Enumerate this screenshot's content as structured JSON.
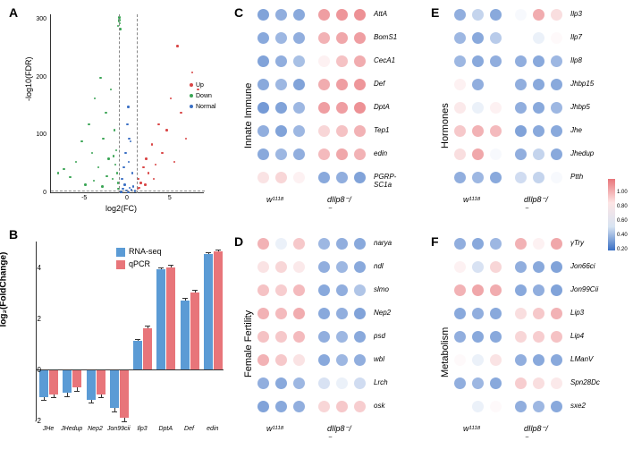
{
  "panelA": {
    "label": "A",
    "xlabel": "log2(FC)",
    "ylabel": "-log10(FDR)",
    "xlim": [
      -9,
      9
    ],
    "ylim": [
      0,
      310
    ],
    "xticks": [
      -5,
      0,
      5
    ],
    "yticks": [
      0,
      100,
      200,
      300
    ],
    "vline_x": [
      -1,
      1
    ],
    "hline_y": 5,
    "legend": [
      {
        "label": "Up",
        "color": "#d94545"
      },
      {
        "label": "Down",
        "color": "#3aa555"
      },
      {
        "label": "Normal",
        "color": "#3a6fc4"
      }
    ],
    "points": [
      {
        "x": -8.2,
        "y": 35,
        "c": "#3aa555"
      },
      {
        "x": -7.5,
        "y": 42,
        "c": "#3aa555"
      },
      {
        "x": -6.8,
        "y": 28,
        "c": "#3aa555"
      },
      {
        "x": -6.1,
        "y": 55,
        "c": "#3aa555"
      },
      {
        "x": -5.4,
        "y": 90,
        "c": "#3aa555"
      },
      {
        "x": -5.0,
        "y": 15,
        "c": "#3aa555"
      },
      {
        "x": -4.6,
        "y": 120,
        "c": "#3aa555"
      },
      {
        "x": -4.2,
        "y": 70,
        "c": "#3aa555"
      },
      {
        "x": -3.9,
        "y": 165,
        "c": "#3aa555"
      },
      {
        "x": -3.5,
        "y": 45,
        "c": "#3aa555"
      },
      {
        "x": -3.2,
        "y": 200,
        "c": "#3aa555"
      },
      {
        "x": -2.9,
        "y": 95,
        "c": "#3aa555"
      },
      {
        "x": -2.6,
        "y": 140,
        "c": "#3aa555"
      },
      {
        "x": -2.3,
        "y": 60,
        "c": "#3aa555"
      },
      {
        "x": -2.0,
        "y": 180,
        "c": "#3aa555"
      },
      {
        "x": -1.8,
        "y": 25,
        "c": "#3aa555"
      },
      {
        "x": -1.6,
        "y": 110,
        "c": "#3aa555"
      },
      {
        "x": -1.4,
        "y": 75,
        "c": "#3aa555"
      },
      {
        "x": -1.2,
        "y": 18,
        "c": "#3aa555"
      },
      {
        "x": -1.1,
        "y": 8,
        "c": "#3aa555"
      },
      {
        "x": -1.0,
        "y": 305,
        "c": "#3aa555"
      },
      {
        "x": -1.0,
        "y": 300,
        "c": "#3aa555"
      },
      {
        "x": -0.95,
        "y": 295,
        "c": "#3aa555"
      },
      {
        "x": -1.05,
        "y": 298,
        "c": "#3aa555"
      },
      {
        "x": -2.5,
        "y": 30,
        "c": "#3aa555"
      },
      {
        "x": -3.0,
        "y": 12,
        "c": "#3aa555"
      },
      {
        "x": -4.0,
        "y": 22,
        "c": "#3aa555"
      },
      {
        "x": -1.5,
        "y": 50,
        "c": "#3aa555"
      },
      {
        "x": -1.3,
        "y": 35,
        "c": "#3aa555"
      },
      {
        "x": -1.7,
        "y": 65,
        "c": "#3aa555"
      },
      {
        "x": -0.8,
        "y": 3,
        "c": "#3a6fc4"
      },
      {
        "x": -0.6,
        "y": 8,
        "c": "#3a6fc4"
      },
      {
        "x": -0.4,
        "y": 15,
        "c": "#3a6fc4"
      },
      {
        "x": -0.2,
        "y": 5,
        "c": "#3a6fc4"
      },
      {
        "x": 0,
        "y": 2,
        "c": "#3a6fc4"
      },
      {
        "x": 0.2,
        "y": 10,
        "c": "#3a6fc4"
      },
      {
        "x": 0.4,
        "y": 6,
        "c": "#3a6fc4"
      },
      {
        "x": 0.6,
        "y": 12,
        "c": "#3a6fc4"
      },
      {
        "x": 0.8,
        "y": 4,
        "c": "#3a6fc4"
      },
      {
        "x": -0.5,
        "y": 45,
        "c": "#3a6fc4"
      },
      {
        "x": -0.3,
        "y": 70,
        "c": "#3a6fc4"
      },
      {
        "x": 0.1,
        "y": 55,
        "c": "#3a6fc4"
      },
      {
        "x": 0.3,
        "y": 90,
        "c": "#3a6fc4"
      },
      {
        "x": 0.5,
        "y": 35,
        "c": "#3a6fc4"
      },
      {
        "x": -0.7,
        "y": 25,
        "c": "#3a6fc4"
      },
      {
        "x": -0.1,
        "y": 120,
        "c": "#3a6fc4"
      },
      {
        "x": 0.0,
        "y": 150,
        "c": "#3a6fc4"
      },
      {
        "x": 0.15,
        "y": 95,
        "c": "#3a6fc4"
      },
      {
        "x": 1.2,
        "y": 25,
        "c": "#d94545"
      },
      {
        "x": 1.5,
        "y": 18,
        "c": "#d94545"
      },
      {
        "x": 1.8,
        "y": 45,
        "c": "#d94545"
      },
      {
        "x": 2.1,
        "y": 60,
        "c": "#d94545"
      },
      {
        "x": 2.4,
        "y": 35,
        "c": "#d94545"
      },
      {
        "x": 2.8,
        "y": 85,
        "c": "#d94545"
      },
      {
        "x": 3.2,
        "y": 50,
        "c": "#d94545"
      },
      {
        "x": 3.6,
        "y": 120,
        "c": "#d94545"
      },
      {
        "x": 4.0,
        "y": 70,
        "c": "#d94545"
      },
      {
        "x": 4.5,
        "y": 110,
        "c": "#d94545"
      },
      {
        "x": 5.0,
        "y": 165,
        "c": "#d94545"
      },
      {
        "x": 5.4,
        "y": 55,
        "c": "#d94545"
      },
      {
        "x": 5.8,
        "y": 255,
        "c": "#d94545"
      },
      {
        "x": 6.2,
        "y": 140,
        "c": "#d94545"
      },
      {
        "x": 6.8,
        "y": 95,
        "c": "#d94545"
      },
      {
        "x": 7.5,
        "y": 210,
        "c": "#d94545"
      },
      {
        "x": 8.2,
        "y": 180,
        "c": "#d94545"
      },
      {
        "x": 1.3,
        "y": 10,
        "c": "#d94545"
      },
      {
        "x": 1.1,
        "y": 8,
        "c": "#d94545"
      },
      {
        "x": 2.0,
        "y": 15,
        "c": "#d94545"
      },
      {
        "x": 3.0,
        "y": 25,
        "c": "#d94545"
      },
      {
        "x": -1.2,
        "y": 290,
        "c": "#3aa555"
      },
      {
        "x": -0.9,
        "y": 285,
        "c": "#3aa555"
      }
    ]
  },
  "panelB": {
    "label": "B",
    "ylabel": "log₂(FoldChange)",
    "ylim": [
      -2,
      5
    ],
    "yticks": [
      -2,
      0,
      2,
      4
    ],
    "series": [
      {
        "label": "RNA-seq",
        "color": "#5b9bd5"
      },
      {
        "label": "qPCR",
        "color": "#e8757a"
      }
    ],
    "categories": [
      "JHe",
      "JHedup",
      "Nep2",
      "Jon99cii",
      "Ilp3",
      "DptA",
      "Def",
      "edin"
    ],
    "rnaseq": [
      -1.1,
      -0.9,
      -1.2,
      -1.5,
      1.1,
      3.9,
      2.7,
      4.5
    ],
    "qpcr": [
      -1.0,
      -0.7,
      -1.0,
      -1.9,
      1.6,
      4.0,
      3.0,
      4.6
    ],
    "err": [
      0.1,
      0.15,
      0.1,
      0.15,
      0.1,
      0.08,
      0.1,
      0.08
    ]
  },
  "heatmaps": {
    "colorRange": [
      "#3a6fc4",
      "#d8e4f2",
      "#fde5e5",
      "#e8757a"
    ],
    "scaleLabels": [
      "0.20",
      "0.40",
      "0.60",
      "0.80",
      "1.00"
    ],
    "xgroups": [
      "w¹¹¹⁸",
      "dIlp8⁻/⁻"
    ],
    "C": {
      "label": "C",
      "ylabel": "Innate Immune",
      "genes": [
        "AttA",
        "BomS1",
        "CecA1",
        "Def",
        "DptA",
        "Tep1",
        "edin",
        "PGRP-SC1a"
      ],
      "vals": [
        [
          0.18,
          0.22,
          0.2,
          0.85,
          0.88,
          0.9
        ],
        [
          0.2,
          0.25,
          0.22,
          0.78,
          0.82,
          0.85
        ],
        [
          0.18,
          0.22,
          0.28,
          0.55,
          0.72,
          0.8
        ],
        [
          0.2,
          0.25,
          0.18,
          0.8,
          0.85,
          0.88
        ],
        [
          0.15,
          0.18,
          0.25,
          0.85,
          0.85,
          0.9
        ],
        [
          0.22,
          0.18,
          0.25,
          0.65,
          0.72,
          0.78
        ],
        [
          0.2,
          0.25,
          0.22,
          0.75,
          0.82,
          0.78
        ],
        [
          0.6,
          0.65,
          0.55,
          0.2,
          0.22,
          0.18
        ]
      ]
    },
    "D": {
      "label": "D",
      "ylabel": "Female Fertility",
      "genes": [
        "narya",
        "ndl",
        "slmo",
        "Nep2",
        "psd",
        "wbl",
        "Lrch",
        "osk"
      ],
      "vals": [
        [
          0.78,
          0.45,
          0.7,
          0.25,
          0.22,
          0.2
        ],
        [
          0.6,
          0.65,
          0.58,
          0.22,
          0.25,
          0.2
        ],
        [
          0.72,
          0.68,
          0.75,
          0.2,
          0.22,
          0.3
        ],
        [
          0.78,
          0.75,
          0.8,
          0.2,
          0.22,
          0.18
        ],
        [
          0.72,
          0.7,
          0.75,
          0.22,
          0.25,
          0.2
        ],
        [
          0.78,
          0.7,
          0.6,
          0.2,
          0.25,
          0.22
        ],
        [
          0.22,
          0.2,
          0.25,
          0.4,
          0.45,
          0.38
        ],
        [
          0.18,
          0.2,
          0.22,
          0.65,
          0.7,
          0.68
        ]
      ]
    },
    "E": {
      "label": "E",
      "ylabel": "Hormones",
      "genes": [
        "Ilp3",
        "Ilp7",
        "Ilp8",
        "Jhbp15",
        "Jhbp5",
        "Jhe",
        "Jhedup",
        "Ptth"
      ],
      "vals": [
        [
          0.22,
          0.35,
          0.2,
          0.48,
          0.8,
          0.62
        ],
        [
          0.25,
          0.2,
          0.32,
          0.5,
          0.45,
          0.52
        ],
        [
          0.25,
          0.2,
          0.22,
          0.22,
          0.2,
          0.25
        ],
        [
          0.55,
          0.22,
          0.5,
          0.22,
          0.2,
          0.2
        ],
        [
          0.58,
          0.45,
          0.55,
          0.22,
          0.2,
          0.25
        ],
        [
          0.7,
          0.78,
          0.75,
          0.18,
          0.2,
          0.2
        ],
        [
          0.62,
          0.82,
          0.48,
          0.22,
          0.35,
          0.2
        ],
        [
          0.22,
          0.25,
          0.2,
          0.38,
          0.35,
          0.48
        ]
      ]
    },
    "F": {
      "label": "F",
      "ylabel": "Metabolism",
      "genes": [
        "γTry",
        "Jon66ci",
        "Jon99Cii",
        "Lip3",
        "Lip4",
        "LManV",
        "Spn28Dc",
        "sxe2"
      ],
      "vals": [
        [
          0.22,
          0.2,
          0.25,
          0.78,
          0.55,
          0.82
        ],
        [
          0.55,
          0.4,
          0.65,
          0.22,
          0.2,
          0.18
        ],
        [
          0.78,
          0.82,
          0.8,
          0.2,
          0.22,
          0.18
        ],
        [
          0.2,
          0.22,
          0.2,
          0.62,
          0.7,
          0.78
        ],
        [
          0.22,
          0.2,
          0.2,
          0.65,
          0.68,
          0.72
        ],
        [
          0.52,
          0.45,
          0.6,
          0.22,
          0.2,
          0.2
        ],
        [
          0.22,
          0.25,
          0.2,
          0.68,
          0.62,
          0.58
        ],
        [
          0.5,
          0.45,
          0.52,
          0.22,
          0.25,
          0.2
        ]
      ]
    }
  }
}
